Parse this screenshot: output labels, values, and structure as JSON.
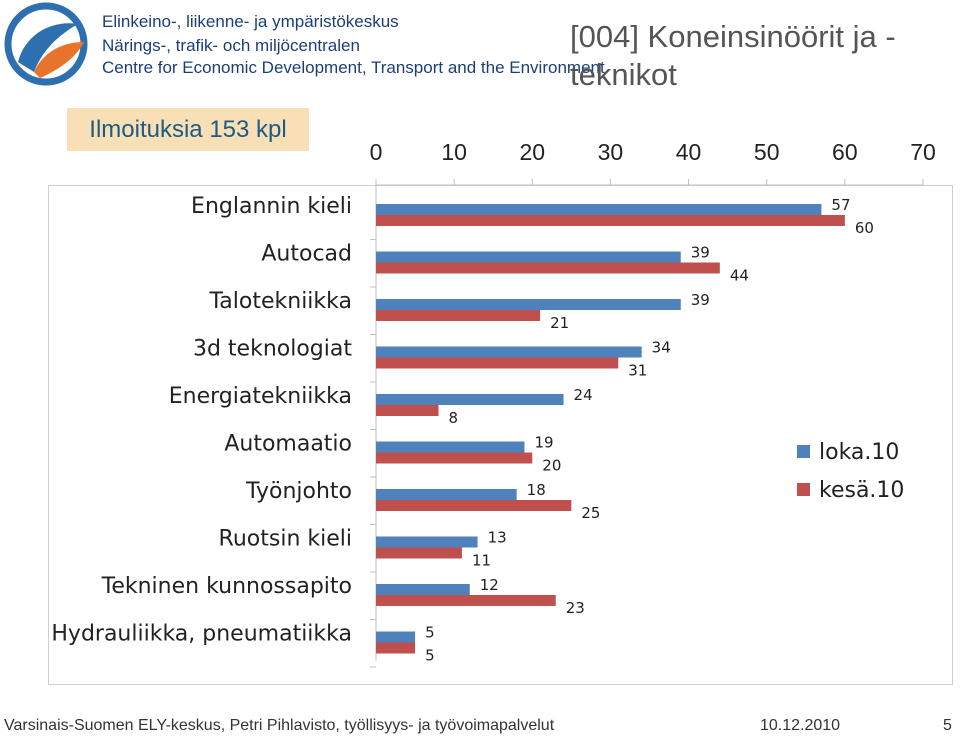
{
  "header": {
    "org_lines": [
      "Elinkeino-, liikenne- ja ympäristökeskus",
      "Närings-, trafik- och miljöcentralen",
      "Centre for Economic Development, Transport and the Environment"
    ],
    "title": "[004] Koneinsinöörit ja -teknikot",
    "ad_count": "Ilmoituksia 153 kpl"
  },
  "footer": {
    "left": "Varsinais-Suomen ELY-keskus, Petri Pihlavisto, työllisyys- ja työvoimapalvelut",
    "date": "10.12.2010",
    "page": "5"
  },
  "colors": {
    "loka": "#4f81bd",
    "kesa": "#c0504d",
    "logo_blue": "#2e6fb0",
    "logo_orange": "#e8732b",
    "ad_box_bg": "#f8dfb6"
  },
  "chart_data": {
    "type": "bar",
    "orientation": "horizontal",
    "categories": [
      "Englannin kieli",
      "Autocad",
      "Talotekniikka",
      "3d teknologiat",
      "Energiatekniikka",
      "Automaatio",
      "Työnjohto",
      "Ruotsin kieli",
      "Tekninen kunnossapito",
      "Hydrauliikka, pneumatiikka"
    ],
    "series": [
      {
        "name": "loka.10",
        "values": [
          57,
          39,
          39,
          34,
          24,
          19,
          18,
          13,
          12,
          5
        ]
      },
      {
        "name": "kesä.10",
        "values": [
          60,
          44,
          21,
          31,
          8,
          20,
          25,
          11,
          23,
          5
        ]
      }
    ],
    "xlim": [
      0,
      70
    ],
    "xticks": [
      0,
      10,
      20,
      30,
      40,
      50,
      60,
      70
    ],
    "axis_position": "top",
    "grid": false,
    "legend_position": "right"
  }
}
